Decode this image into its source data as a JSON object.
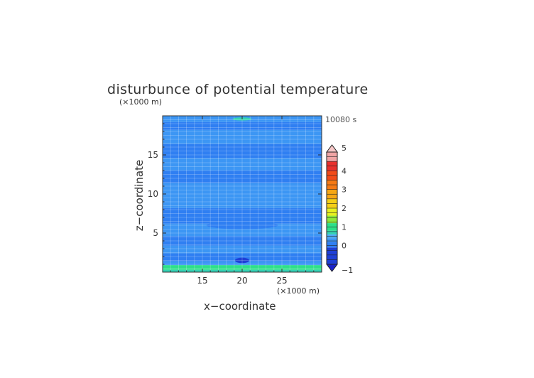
{
  "chart_data": {
    "type": "heatmap",
    "title": "disturbunce of potential temperature",
    "xlabel": "x−coordinate",
    "ylabel": "z−coordinate",
    "x_unit": "(×1000 m)",
    "z_unit": "(×1000 m)",
    "time_label": "10080 s",
    "xlim": [
      10,
      30
    ],
    "ylim": [
      0,
      20
    ],
    "x_ticks": [
      "15",
      "20",
      "25"
    ],
    "x_tick_values": [
      15,
      20,
      25
    ],
    "y_ticks": [
      "5",
      "10",
      "15"
    ],
    "y_tick_values": [
      5,
      10,
      15
    ],
    "grid": true,
    "colorbar": {
      "range": [
        -1,
        5
      ],
      "tick_labels": [
        "5",
        "4",
        "3",
        "2",
        "1",
        "0",
        "−1"
      ],
      "tick_values": [
        5,
        4,
        3,
        2,
        1,
        0,
        -1
      ],
      "levels": [
        {
          "from": -1.0,
          "to": -0.1,
          "color": "#1e3fd6"
        },
        {
          "from": -0.1,
          "to": 0.2,
          "color": "#2f7ff2"
        },
        {
          "from": 0.2,
          "to": 0.4,
          "color": "#3c96f4"
        },
        {
          "from": 0.4,
          "to": 0.6,
          "color": "#4faaf4"
        },
        {
          "from": 0.6,
          "to": 0.8,
          "color": "#34d2b4"
        },
        {
          "from": 0.8,
          "to": 1.2,
          "color": "#2ee089"
        },
        {
          "from": 1.2,
          "to": 1.6,
          "color": "#8fe83a"
        },
        {
          "from": 1.6,
          "to": 2.0,
          "color": "#e8f020"
        },
        {
          "from": 2.0,
          "to": 2.5,
          "color": "#f5cf16"
        },
        {
          "from": 2.5,
          "to": 3.0,
          "color": "#f5a614"
        },
        {
          "from": 3.0,
          "to": 3.5,
          "color": "#f57a14"
        },
        {
          "from": 3.5,
          "to": 4.0,
          "color": "#f24a18"
        },
        {
          "from": 4.0,
          "to": 4.5,
          "color": "#e8302c"
        },
        {
          "from": 4.5,
          "to": 5.0,
          "color": "#f0a5a5"
        }
      ],
      "under_color": "#1a22c8",
      "over_color": "#f7c8c8"
    },
    "field_bands": [
      {
        "z0": 0.0,
        "z1": 0.3,
        "value": 0.6
      },
      {
        "z0": 0.3,
        "z1": 0.9,
        "value": 1.0
      },
      {
        "z0": 0.9,
        "z1": 1.4,
        "value": 0.3
      },
      {
        "z0": 1.4,
        "z1": 2.4,
        "value": 0.1
      },
      {
        "z0": 2.4,
        "z1": 3.4,
        "value": 0.3
      },
      {
        "z0": 3.4,
        "z1": 4.6,
        "value": 0.1
      },
      {
        "z0": 4.6,
        "z1": 6.2,
        "value": 0.3
      },
      {
        "z0": 6.2,
        "z1": 8.2,
        "value": 0.1
      },
      {
        "z0": 8.2,
        "z1": 11.4,
        "value": 0.3
      },
      {
        "z0": 11.4,
        "z1": 13.0,
        "value": 0.1
      },
      {
        "z0": 13.0,
        "z1": 14.6,
        "value": 0.3
      },
      {
        "z0": 14.6,
        "z1": 16.4,
        "value": 0.1
      },
      {
        "z0": 16.4,
        "z1": 18.2,
        "value": 0.3
      },
      {
        "z0": 18.2,
        "z1": 19.2,
        "value": 0.1
      },
      {
        "z0": 19.2,
        "z1": 20.0,
        "value": 0.3
      }
    ],
    "field_features": [
      {
        "x": 20.0,
        "z": 1.5,
        "rx": 0.9,
        "rz": 0.35,
        "value": -0.5
      },
      {
        "x": 20.0,
        "z": 18.6,
        "rx": 0.8,
        "rz": 0.25,
        "value": 0.1
      },
      {
        "x": 20.0,
        "z": 19.6,
        "rx": 1.2,
        "rz": 0.2,
        "value": 0.7
      },
      {
        "x": 20.0,
        "z": 10.0,
        "rx": 5.5,
        "rz": 1.2,
        "value": 0.3
      },
      {
        "x": 20.0,
        "z": 6.0,
        "rx": 4.5,
        "rz": 0.5,
        "value": 0.1
      }
    ]
  }
}
